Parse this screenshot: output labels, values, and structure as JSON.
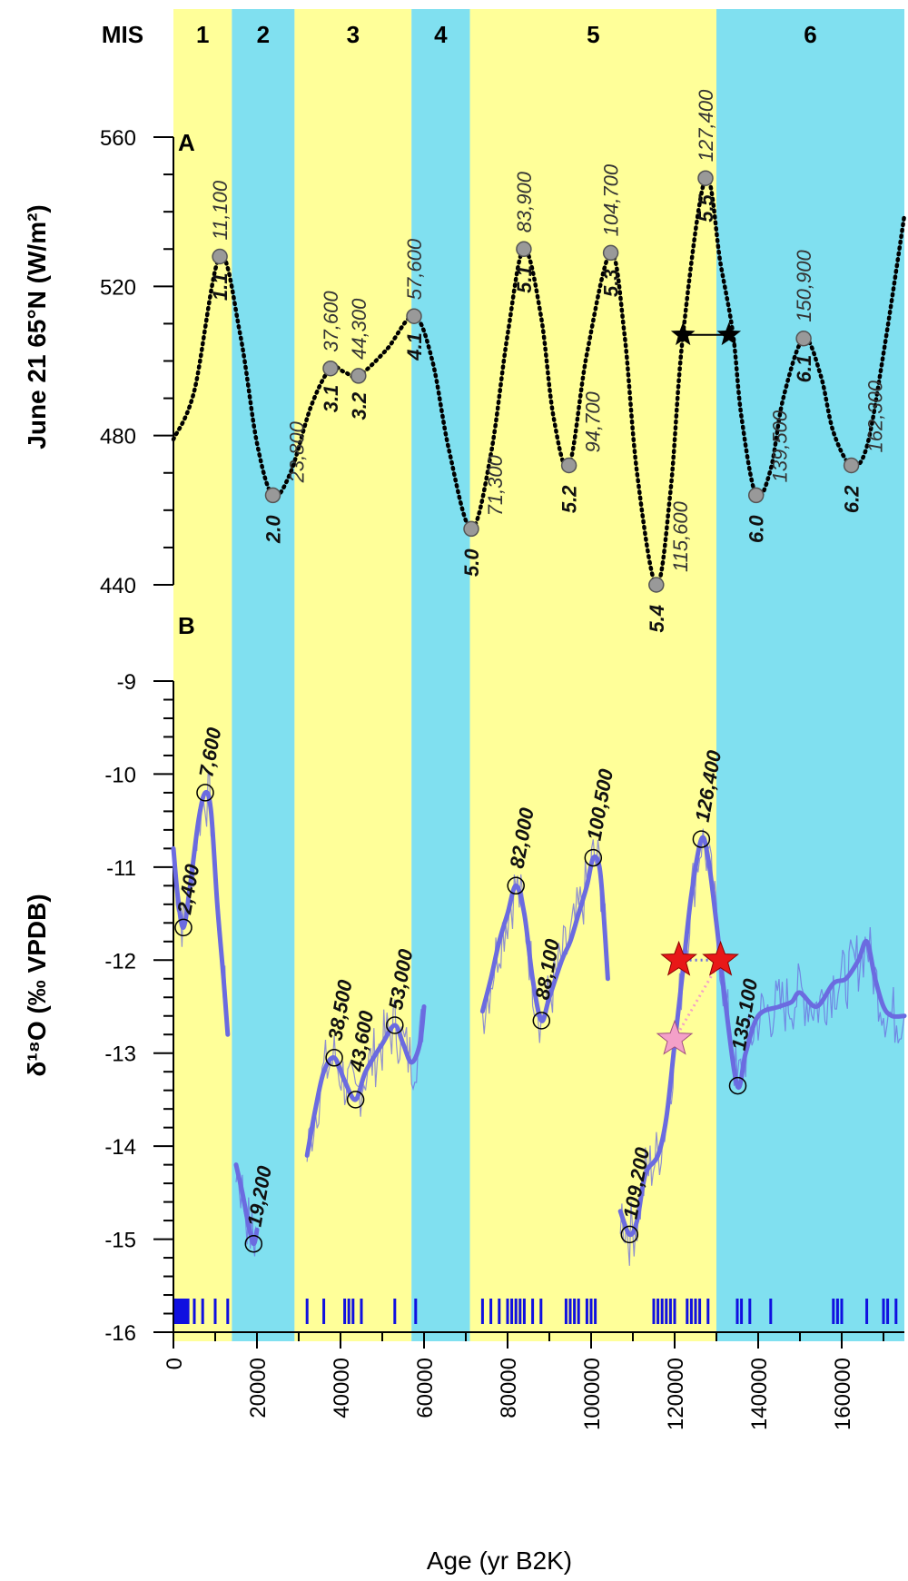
{
  "chart_data": {
    "type": "line",
    "x_axis": {
      "label": "Age (yr B2K)",
      "range": [
        0,
        175000
      ],
      "ticks": [
        "0",
        "20000",
        "40000",
        "60000",
        "80000",
        "100000",
        "120000",
        "140000",
        "160000"
      ],
      "tick_values": [
        0,
        20000,
        40000,
        60000,
        80000,
        100000,
        120000,
        140000,
        160000
      ],
      "minor_tick_step": 10000
    },
    "mis": {
      "header": "MIS",
      "stages": [
        {
          "label": "1",
          "start": 0,
          "end": 14000,
          "color": "#FFFF99"
        },
        {
          "label": "2",
          "start": 14000,
          "end": 29000,
          "color": "#80E0F0"
        },
        {
          "label": "3",
          "start": 29000,
          "end": 57000,
          "color": "#FFFF99"
        },
        {
          "label": "4",
          "start": 57000,
          "end": 71000,
          "color": "#80E0F0"
        },
        {
          "label": "5",
          "start": 71000,
          "end": 130000,
          "color": "#FFFF99"
        },
        {
          "label": "6",
          "start": 130000,
          "end": 175000,
          "color": "#80E0F0"
        }
      ]
    },
    "panels": [
      {
        "letter": "A",
        "ylabel": "June 21 65°N (W/m²)",
        "ylim": [
          440,
          560
        ],
        "y_ticks": [
          "440",
          "480",
          "520",
          "560"
        ],
        "y_tick_values": [
          440,
          480,
          520,
          560
        ],
        "minor_tick_step": 10,
        "series": {
          "style": "dotted",
          "color": "#000000",
          "points": [
            [
              0,
              479
            ],
            [
              5000,
              492
            ],
            [
              11100,
              528
            ],
            [
              16000,
              507
            ],
            [
              20000,
              478
            ],
            [
              23800,
              464
            ],
            [
              28000,
              470
            ],
            [
              33000,
              488
            ],
            [
              37600,
              498
            ],
            [
              41000,
              497
            ],
            [
              44300,
              496
            ],
            [
              51000,
              503
            ],
            [
              57600,
              512
            ],
            [
              62000,
              500
            ],
            [
              66000,
              476
            ],
            [
              71300,
              455
            ],
            [
              76000,
              475
            ],
            [
              80000,
              507
            ],
            [
              83900,
              530
            ],
            [
              88000,
              512
            ],
            [
              91000,
              485
            ],
            [
              94700,
              472
            ],
            [
              99000,
              502
            ],
            [
              104700,
              529
            ],
            [
              108000,
              507
            ],
            [
              111000,
              470
            ],
            [
              115600,
              440
            ],
            [
              119000,
              465
            ],
            [
              122000,
              507
            ],
            [
              127400,
              549
            ],
            [
              131000,
              526
            ],
            [
              134000,
              507
            ],
            [
              136000,
              485
            ],
            [
              139500,
              464
            ],
            [
              143000,
              471
            ],
            [
              146000,
              490
            ],
            [
              150900,
              506
            ],
            [
              155000,
              496
            ],
            [
              158000,
              481
            ],
            [
              162300,
              472
            ],
            [
              166000,
              477
            ],
            [
              170000,
              502
            ],
            [
              175000,
              539
            ]
          ]
        },
        "peak_labels": [
          "11,100",
          "23,800",
          "37,600",
          "44,300",
          "57,600",
          "71,300",
          "83,900",
          "94,700",
          "104,700",
          "115,600",
          "127,400",
          "139,500",
          "150,900",
          "162,300"
        ],
        "peak_ages": [
          11100,
          23800,
          37600,
          44300,
          57600,
          71300,
          83900,
          94700,
          104700,
          115600,
          127400,
          139500,
          150900,
          162300
        ],
        "peak_values": [
          528,
          464,
          498,
          496,
          512,
          455,
          530,
          472,
          529,
          440,
          549,
          464,
          506,
          472
        ],
        "substage_labels": [
          "1.1",
          "2.0",
          "3.1",
          "3.2",
          "4.1",
          "5.0",
          "5.1",
          "5.2",
          "5.3",
          "5.4",
          "5.5",
          "6.0",
          "6.1",
          "6.2"
        ],
        "stars": {
          "color": "#000000",
          "y": 507,
          "x": [
            122000,
            133000
          ]
        }
      },
      {
        "letter": "B",
        "ylabel": "δ¹⁸O (‰ VPDB)",
        "ylim": [
          -16,
          -9
        ],
        "y_ticks": [
          "-9",
          "-10",
          "-11",
          "-12",
          "-13",
          "-14",
          "-15",
          "-16"
        ],
        "y_tick_values": [
          -9,
          -10,
          -11,
          -12,
          -13,
          -14,
          -15,
          -16
        ],
        "minor_tick_step": 0.2,
        "line_color": "#6B6BE0",
        "segments": [
          [
            [
              0,
              -10.8
            ],
            [
              1000,
              -11.3
            ],
            [
              2400,
              -11.65
            ],
            [
              4000,
              -11.2
            ],
            [
              6000,
              -10.5
            ],
            [
              7600,
              -10.2
            ],
            [
              9000,
              -10.4
            ],
            [
              10500,
              -11.4
            ],
            [
              12000,
              -12.2
            ],
            [
              13000,
              -12.8
            ]
          ],
          [
            [
              15000,
              -14.2
            ],
            [
              16500,
              -14.5
            ],
            [
              18000,
              -14.85
            ],
            [
              19200,
              -15.05
            ],
            [
              20000,
              -14.9
            ]
          ],
          [
            [
              32000,
              -14.1
            ],
            [
              34000,
              -13.6
            ],
            [
              36000,
              -13.2
            ],
            [
              38500,
              -13.05
            ],
            [
              41000,
              -13.3
            ],
            [
              43600,
              -13.5
            ],
            [
              46000,
              -13.2
            ],
            [
              50000,
              -12.9
            ],
            [
              53000,
              -12.7
            ],
            [
              55000,
              -12.9
            ],
            [
              57000,
              -13.1
            ],
            [
              59000,
              -12.9
            ],
            [
              60000,
              -12.5
            ]
          ],
          [
            [
              74000,
              -12.55
            ],
            [
              76000,
              -12.2
            ],
            [
              78000,
              -11.8
            ],
            [
              80000,
              -11.5
            ],
            [
              82000,
              -11.2
            ],
            [
              84000,
              -11.5
            ],
            [
              86000,
              -12.2
            ],
            [
              88100,
              -12.65
            ],
            [
              90000,
              -12.4
            ],
            [
              93000,
              -12.0
            ],
            [
              95000,
              -11.8
            ],
            [
              97000,
              -11.5
            ],
            [
              99000,
              -11.2
            ],
            [
              100500,
              -10.9
            ],
            [
              102000,
              -11.0
            ],
            [
              103000,
              -11.5
            ],
            [
              104000,
              -12.2
            ]
          ],
          [
            [
              107000,
              -14.7
            ],
            [
              109200,
              -14.95
            ],
            [
              111000,
              -14.8
            ],
            [
              113000,
              -14.3
            ],
            [
              116000,
              -14.1
            ],
            [
              118000,
              -13.7
            ],
            [
              120000,
              -12.9
            ],
            [
              122000,
              -12.1
            ],
            [
              124000,
              -11.3
            ],
            [
              126400,
              -10.7
            ],
            [
              128000,
              -10.9
            ],
            [
              130000,
              -11.6
            ],
            [
              132000,
              -12.4
            ],
            [
              135000,
              -13.35
            ],
            [
              137000,
              -13.0
            ],
            [
              140000,
              -12.6
            ],
            [
              145000,
              -12.5
            ],
            [
              148000,
              -12.45
            ],
            [
              150000,
              -12.35
            ],
            [
              154000,
              -12.5
            ],
            [
              158000,
              -12.25
            ],
            [
              161000,
              -12.2
            ],
            [
              164000,
              -12.0
            ],
            [
              166000,
              -11.8
            ],
            [
              168000,
              -12.2
            ],
            [
              170000,
              -12.5
            ],
            [
              172000,
              -12.6
            ],
            [
              175000,
              -12.6
            ]
          ]
        ],
        "peak_ages": [
          2400,
          7600,
          19200,
          38500,
          43600,
          53000,
          82000,
          88100,
          100500,
          109200,
          126400,
          135100
        ],
        "peak_values": [
          -11.65,
          -10.2,
          -15.05,
          -13.05,
          -13.5,
          -12.7,
          -11.2,
          -12.65,
          -10.9,
          -14.95,
          -10.7,
          -13.35
        ],
        "peak_labels": [
          "2,400",
          "7,600",
          "19,200",
          "38,500",
          "43,600",
          "53,000",
          "82,000",
          "88,100",
          "100,500",
          "109,200",
          "126,400",
          "135,100"
        ],
        "stars": {
          "red": {
            "color": "#E81818",
            "y": -12.0,
            "x": [
              121000,
              131000
            ]
          },
          "pink": {
            "color": "#F4A0C8",
            "x": 120000,
            "y": -12.85
          }
        },
        "dating_ages": [
          500,
          1000,
          1500,
          2000,
          2500,
          3000,
          3500,
          5000,
          7000,
          10000,
          13000,
          32000,
          36000,
          41000,
          42000,
          43000,
          45000,
          53000,
          58000,
          74000,
          76000,
          78000,
          80000,
          81000,
          82000,
          83000,
          84000,
          86000,
          88000,
          94000,
          95000,
          96000,
          97000,
          99000,
          100000,
          101000,
          115000,
          116000,
          117000,
          118000,
          119000,
          120000,
          123000,
          124000,
          125000,
          126000,
          128000,
          135000,
          136000,
          138000,
          143000,
          158000,
          159000,
          160000,
          166000,
          170000,
          171000,
          173000
        ],
        "dating_color": "#1010E0"
      }
    ]
  }
}
